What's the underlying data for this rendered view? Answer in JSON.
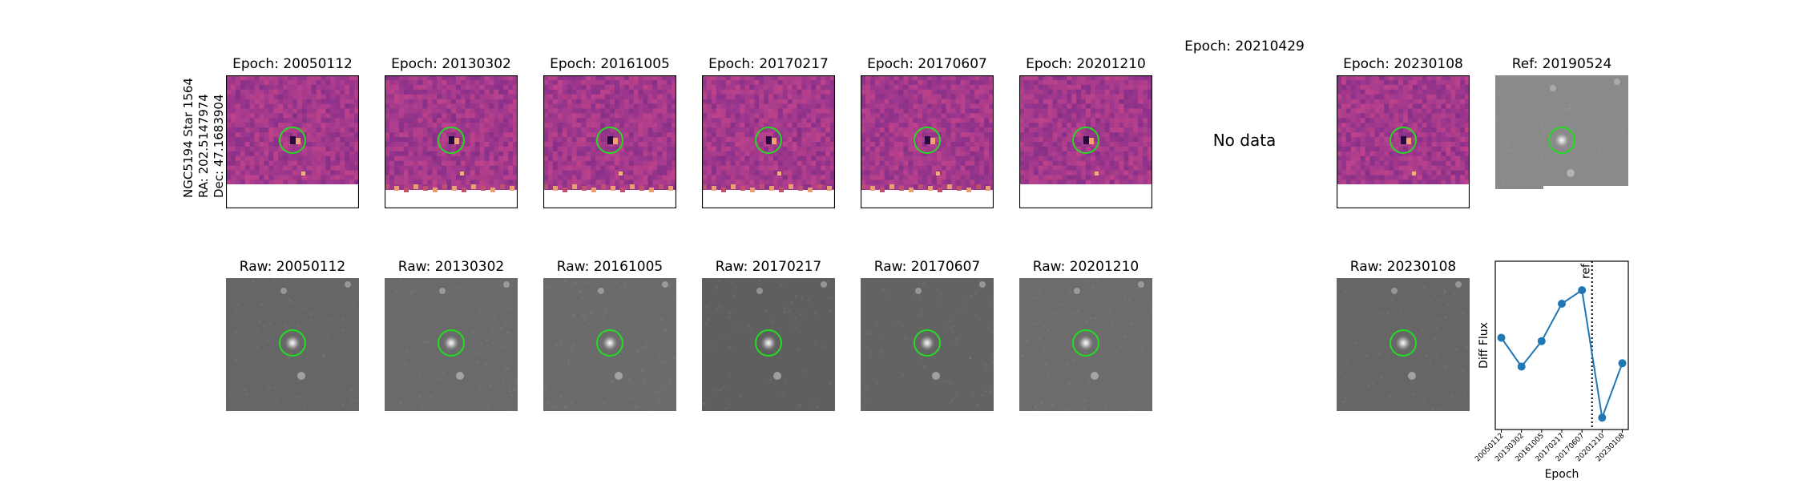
{
  "side_label": {
    "line1": "NGC5194 Star 1564",
    "line2": "RA: 202.5147974",
    "line3": "Dec: 47.1683904"
  },
  "diff_panels": [
    {
      "title": "Epoch: 20050112",
      "has_data": true,
      "mask": "bottom-flat"
    },
    {
      "title": "Epoch: 20130302",
      "has_data": true,
      "mask": "bottom-ragged"
    },
    {
      "title": "Epoch: 20161005",
      "has_data": true,
      "mask": "bottom-ragged"
    },
    {
      "title": "Epoch: 20170217",
      "has_data": true,
      "mask": "bottom-ragged"
    },
    {
      "title": "Epoch: 20170607",
      "has_data": true,
      "mask": "bottom-ragged"
    },
    {
      "title": "Epoch: 20201210",
      "has_data": true,
      "mask": "bottom-flat"
    },
    {
      "title": "Epoch: 20210429",
      "has_data": false,
      "no_data_text": "No data"
    },
    {
      "title": "Epoch: 20230108",
      "has_data": true,
      "mask": "bottom-flat"
    }
  ],
  "ref_panel": {
    "title": "Ref: 20190524"
  },
  "raw_panels": [
    {
      "title": "Raw: 20050112"
    },
    {
      "title": "Raw: 20130302"
    },
    {
      "title": "Raw: 20161005"
    },
    {
      "title": "Raw: 20170217"
    },
    {
      "title": "Raw: 20170607"
    },
    {
      "title": "Raw: 20201210"
    },
    {
      "title": "Raw: 20230108"
    }
  ],
  "colors": {
    "circle": "#22dd22",
    "diff_base": "#9a3f8a",
    "series": "#1f77b4"
  },
  "chart_data": {
    "type": "line",
    "title": "",
    "xlabel": "Epoch",
    "ylabel": "Diff Flux",
    "x": [
      "20050112",
      "20130302",
      "20161005",
      "20170217",
      "20170607",
      "20201210",
      "20230108"
    ],
    "series": [
      {
        "values": [
          0.45,
          0.28,
          0.43,
          0.65,
          0.73,
          -0.02,
          0.3
        ]
      }
    ],
    "ylim": [
      -0.09,
      0.9
    ],
    "reference_line": {
      "label": "ref",
      "position_between": [
        "20170607",
        "20201210"
      ],
      "style": "dotted"
    },
    "grid": false
  }
}
